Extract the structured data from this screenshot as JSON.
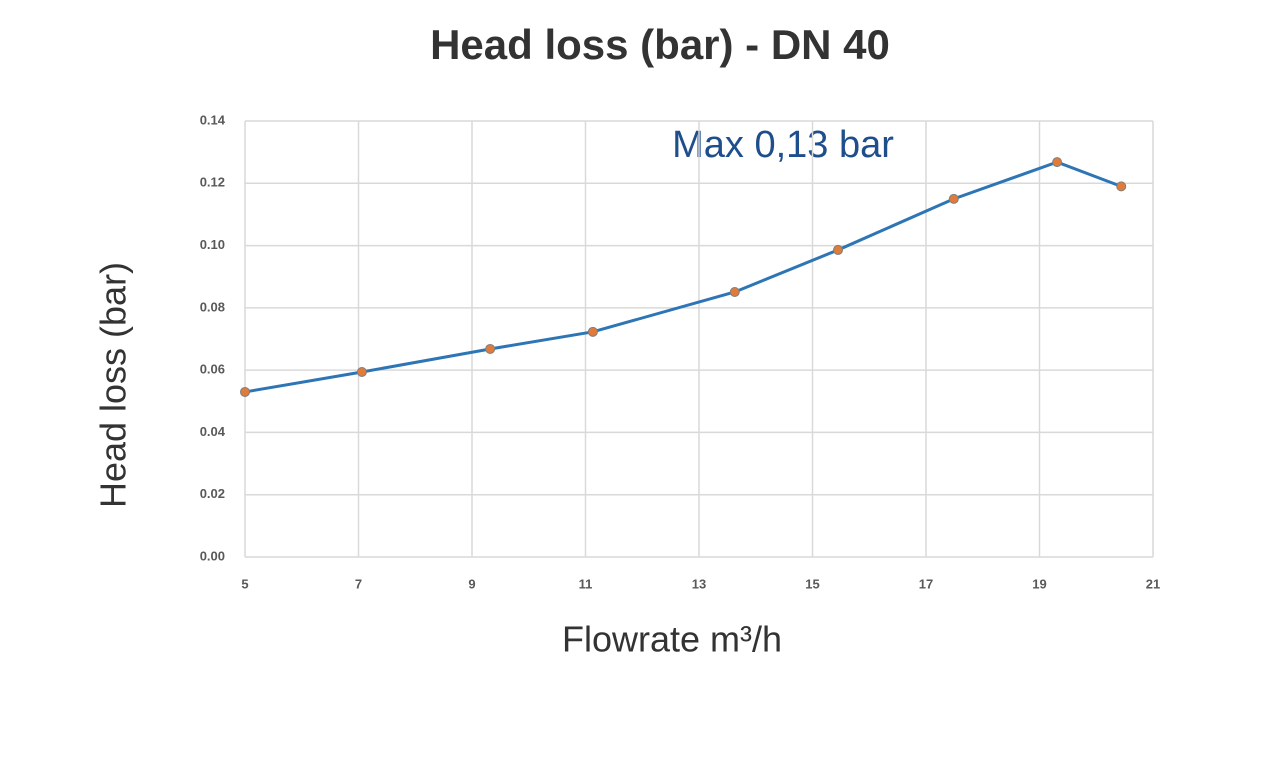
{
  "chart_data": {
    "type": "line",
    "title": "Head loss (bar) - DN 40",
    "xlabel": "Flowrate m³/h",
    "ylabel": "Head loss (bar)",
    "annotation": "Max 0,13 bar",
    "x": [
      5,
      7.06,
      9.32,
      11.13,
      13.63,
      15.45,
      17.49,
      19.31,
      20.44
    ],
    "series": [
      {
        "name": "Head loss",
        "color": "#2e75b6",
        "marker_color": "#e07b39",
        "values": [
          0.053,
          0.0594,
          0.0668,
          0.0723,
          0.0851,
          0.0986,
          0.115,
          0.1268,
          0.119
        ]
      }
    ],
    "xlim": [
      5,
      21
    ],
    "xticks": [
      5,
      7,
      9,
      11,
      13,
      15,
      17,
      19,
      21
    ],
    "ylim": [
      0,
      0.14
    ],
    "yticks": [
      {
        "value": 0,
        "label": "0.00"
      },
      0.02,
      0.04,
      0.06,
      0.08,
      {
        "value": 0.1,
        "label": "0.10"
      },
      0.12,
      0.14
    ],
    "grid": true
  }
}
